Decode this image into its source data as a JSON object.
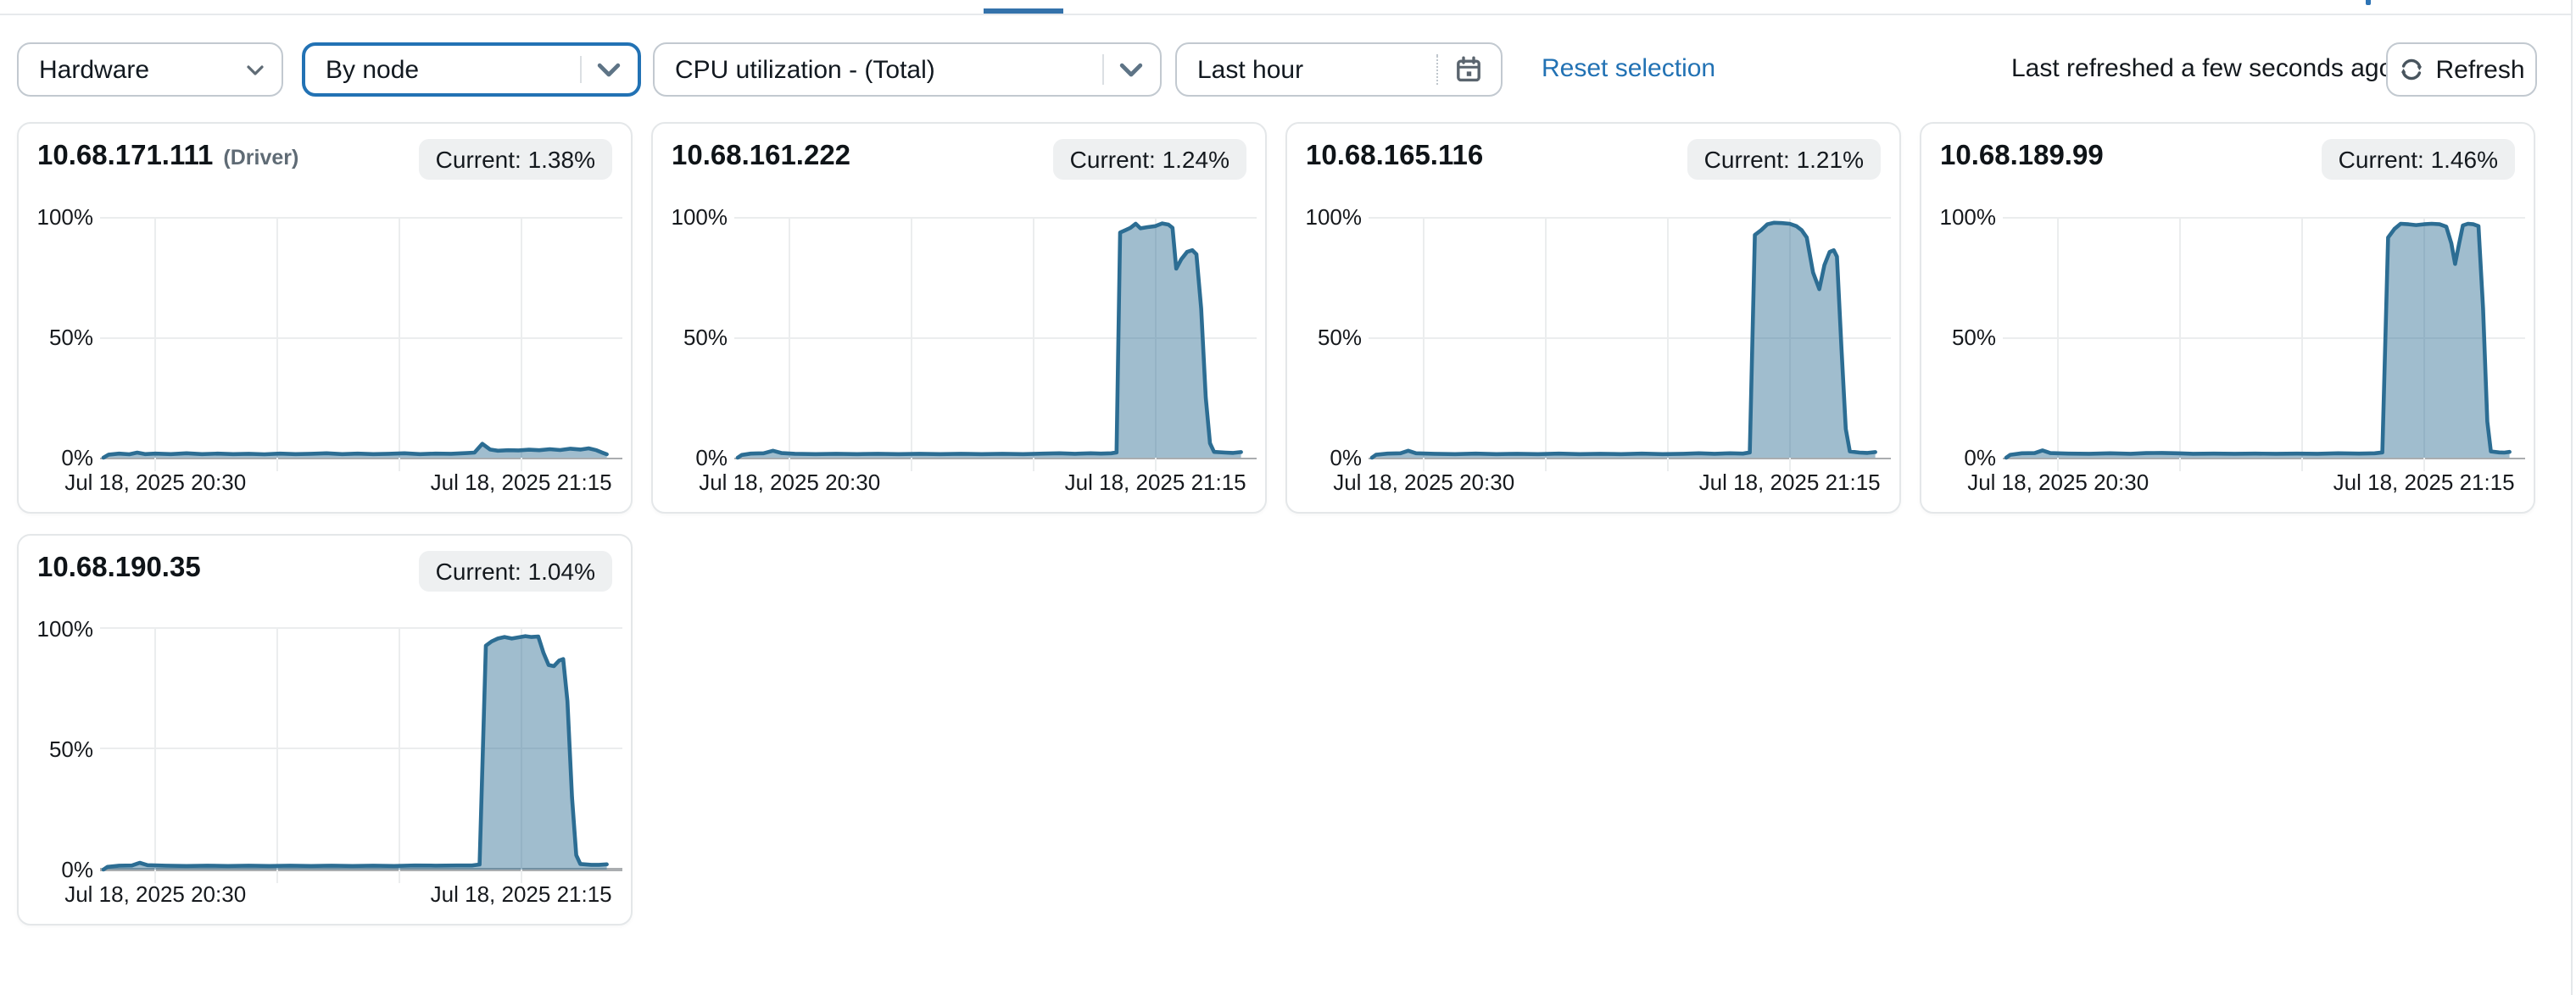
{
  "toolbar": {
    "hardware_select": {
      "value": "Hardware"
    },
    "group_by_select": {
      "value": "By node"
    },
    "metric_select": {
      "value": "CPU utilization - (Total)"
    },
    "time_range_select": {
      "value": "Last hour"
    },
    "reset_selection_label": "Reset selection",
    "last_refreshed": "Last refreshed a few seconds ago",
    "refresh_button_label": "Refresh"
  },
  "colors": {
    "accent_blue": "#2272b4",
    "tab_indicator": "#3472ab",
    "chart_line": "#2c6d93",
    "chart_fill": "rgba(44,109,147,0.45)",
    "gridline": "#ebedee",
    "zero_axis": "#aaadb0",
    "badge_bg": "#eef0f1"
  },
  "chart_data": {
    "type": "area",
    "metric": "CPU utilization - (Total)",
    "time_range": "Last hour",
    "ylim": [
      0,
      100
    ],
    "grid": "on",
    "legend": "none",
    "axes": {
      "y_ticks": [
        {
          "label": "100%",
          "value": 100
        },
        {
          "label": "50%",
          "value": 50
        },
        {
          "label": "0%",
          "value": 0
        }
      ],
      "x_ticks": [
        {
          "label": "Jul 18, 2025 20:30",
          "pos": 0.1
        },
        {
          "label": "Jul 18, 2025 21:15",
          "pos": 0.805
        }
      ],
      "x_gridlines": [
        0.1,
        0.335,
        0.57,
        0.805
      ]
    },
    "charts": [
      {
        "node": "10.68.171.111",
        "role": "(Driver)",
        "current": "Current: 1.38%",
        "current_value": 1.38,
        "points": [
          [
            0,
            0
          ],
          [
            0.01,
            1.3
          ],
          [
            0.03,
            1.7
          ],
          [
            0.05,
            1.4
          ],
          [
            0.065,
            2.1
          ],
          [
            0.08,
            1.5
          ],
          [
            0.1,
            1.7
          ],
          [
            0.13,
            1.5
          ],
          [
            0.16,
            1.8
          ],
          [
            0.19,
            1.5
          ],
          [
            0.22,
            1.7
          ],
          [
            0.25,
            1.5
          ],
          [
            0.28,
            1.6
          ],
          [
            0.31,
            1.4
          ],
          [
            0.34,
            1.7
          ],
          [
            0.37,
            1.5
          ],
          [
            0.4,
            1.6
          ],
          [
            0.43,
            1.8
          ],
          [
            0.46,
            1.5
          ],
          [
            0.49,
            1.7
          ],
          [
            0.52,
            1.5
          ],
          [
            0.55,
            1.6
          ],
          [
            0.58,
            1.8
          ],
          [
            0.61,
            1.5
          ],
          [
            0.64,
            1.7
          ],
          [
            0.67,
            1.6
          ],
          [
            0.7,
            1.9
          ],
          [
            0.715,
            2.1
          ],
          [
            0.73,
            5.8
          ],
          [
            0.745,
            3.4
          ],
          [
            0.76,
            2.9
          ],
          [
            0.78,
            3.1
          ],
          [
            0.8,
            3.0
          ],
          [
            0.82,
            3.3
          ],
          [
            0.84,
            3.1
          ],
          [
            0.86,
            3.5
          ],
          [
            0.88,
            3.2
          ],
          [
            0.9,
            3.7
          ],
          [
            0.92,
            3.4
          ],
          [
            0.935,
            3.9
          ],
          [
            0.95,
            3.1
          ],
          [
            0.96,
            2.2
          ],
          [
            0.97,
            1.4
          ]
        ]
      },
      {
        "node": "10.68.161.222",
        "role": "",
        "current": "Current: 1.24%",
        "current_value": 1.24,
        "points": [
          [
            0,
            0
          ],
          [
            0.008,
            1.1
          ],
          [
            0.025,
            1.7
          ],
          [
            0.05,
            1.8
          ],
          [
            0.068,
            2.9
          ],
          [
            0.085,
            1.9
          ],
          [
            0.11,
            1.6
          ],
          [
            0.15,
            1.5
          ],
          [
            0.19,
            1.6
          ],
          [
            0.23,
            1.5
          ],
          [
            0.27,
            1.6
          ],
          [
            0.31,
            1.5
          ],
          [
            0.35,
            1.6
          ],
          [
            0.39,
            1.5
          ],
          [
            0.43,
            1.6
          ],
          [
            0.47,
            1.5
          ],
          [
            0.51,
            1.6
          ],
          [
            0.55,
            1.5
          ],
          [
            0.59,
            1.7
          ],
          [
            0.62,
            1.8
          ],
          [
            0.65,
            1.6
          ],
          [
            0.68,
            1.8
          ],
          [
            0.7,
            1.7
          ],
          [
            0.72,
            1.8
          ],
          [
            0.73,
            2.2
          ],
          [
            0.737,
            93.5
          ],
          [
            0.747,
            94.5
          ],
          [
            0.757,
            95.5
          ],
          [
            0.767,
            97.2
          ],
          [
            0.776,
            95.3
          ],
          [
            0.79,
            95.8
          ],
          [
            0.805,
            96.2
          ],
          [
            0.818,
            97.3
          ],
          [
            0.83,
            96.8
          ],
          [
            0.838,
            95.5
          ],
          [
            0.845,
            78.5
          ],
          [
            0.855,
            82.5
          ],
          [
            0.866,
            85.5
          ],
          [
            0.876,
            86.2
          ],
          [
            0.884,
            84.5
          ],
          [
            0.893,
            62
          ],
          [
            0.902,
            25
          ],
          [
            0.91,
            6
          ],
          [
            0.918,
            2.4
          ],
          [
            0.94,
            2.1
          ],
          [
            0.955,
            2.0
          ],
          [
            0.97,
            2.3
          ]
        ]
      },
      {
        "node": "10.68.165.116",
        "role": "",
        "current": "Current: 1.21%",
        "current_value": 1.21,
        "points": [
          [
            0,
            0
          ],
          [
            0.008,
            1.2
          ],
          [
            0.03,
            1.7
          ],
          [
            0.055,
            1.8
          ],
          [
            0.07,
            2.9
          ],
          [
            0.085,
            1.8
          ],
          [
            0.12,
            1.6
          ],
          [
            0.16,
            1.5
          ],
          [
            0.2,
            1.7
          ],
          [
            0.24,
            1.5
          ],
          [
            0.28,
            1.6
          ],
          [
            0.32,
            1.5
          ],
          [
            0.36,
            1.7
          ],
          [
            0.4,
            1.5
          ],
          [
            0.44,
            1.6
          ],
          [
            0.48,
            1.5
          ],
          [
            0.52,
            1.7
          ],
          [
            0.56,
            1.5
          ],
          [
            0.6,
            1.6
          ],
          [
            0.63,
            1.8
          ],
          [
            0.66,
            1.6
          ],
          [
            0.69,
            1.8
          ],
          [
            0.715,
            1.7
          ],
          [
            0.728,
            2.2
          ],
          [
            0.738,
            92.5
          ],
          [
            0.75,
            94.5
          ],
          [
            0.762,
            97.0
          ],
          [
            0.775,
            97.6
          ],
          [
            0.79,
            97.5
          ],
          [
            0.805,
            97.2
          ],
          [
            0.818,
            96.2
          ],
          [
            0.828,
            94.5
          ],
          [
            0.838,
            91.5
          ],
          [
            0.85,
            77
          ],
          [
            0.862,
            70
          ],
          [
            0.872,
            80
          ],
          [
            0.882,
            85.5
          ],
          [
            0.89,
            86.2
          ],
          [
            0.896,
            83.5
          ],
          [
            0.905,
            45
          ],
          [
            0.913,
            12
          ],
          [
            0.921,
            2.6
          ],
          [
            0.94,
            2.1
          ],
          [
            0.955,
            2.0
          ],
          [
            0.97,
            2.3
          ]
        ]
      },
      {
        "node": "10.68.189.99",
        "role": "",
        "current": "Current: 1.46%",
        "current_value": 1.46,
        "points": [
          [
            0,
            0
          ],
          [
            0.008,
            1.2
          ],
          [
            0.03,
            1.8
          ],
          [
            0.055,
            1.9
          ],
          [
            0.07,
            3.0
          ],
          [
            0.085,
            1.9
          ],
          [
            0.12,
            1.7
          ],
          [
            0.16,
            1.6
          ],
          [
            0.2,
            1.8
          ],
          [
            0.24,
            1.6
          ],
          [
            0.27,
            1.9
          ],
          [
            0.3,
            2.0
          ],
          [
            0.33,
            1.8
          ],
          [
            0.36,
            1.6
          ],
          [
            0.4,
            1.7
          ],
          [
            0.44,
            1.6
          ],
          [
            0.48,
            1.7
          ],
          [
            0.52,
            1.6
          ],
          [
            0.56,
            1.7
          ],
          [
            0.6,
            1.6
          ],
          [
            0.64,
            1.8
          ],
          [
            0.68,
            1.7
          ],
          [
            0.71,
            1.8
          ],
          [
            0.725,
            2.2
          ],
          [
            0.736,
            91.5
          ],
          [
            0.748,
            95.0
          ],
          [
            0.76,
            97.2
          ],
          [
            0.775,
            97.0
          ],
          [
            0.79,
            96.6
          ],
          [
            0.805,
            97.0
          ],
          [
            0.82,
            97.2
          ],
          [
            0.835,
            97.0
          ],
          [
            0.848,
            96.0
          ],
          [
            0.858,
            89
          ],
          [
            0.865,
            80.5
          ],
          [
            0.873,
            89
          ],
          [
            0.88,
            96.5
          ],
          [
            0.89,
            97.2
          ],
          [
            0.9,
            97.0
          ],
          [
            0.91,
            96.2
          ],
          [
            0.919,
            62
          ],
          [
            0.927,
            15
          ],
          [
            0.934,
            2.6
          ],
          [
            0.95,
            2.2
          ],
          [
            0.96,
            2.1
          ],
          [
            0.97,
            2.4
          ]
        ]
      },
      {
        "node": "10.68.190.35",
        "role": "",
        "current": "Current: 1.04%",
        "current_value": 1.04,
        "points": [
          [
            0,
            0
          ],
          [
            0.008,
            1.1
          ],
          [
            0.03,
            1.6
          ],
          [
            0.055,
            1.7
          ],
          [
            0.07,
            2.8
          ],
          [
            0.085,
            1.8
          ],
          [
            0.12,
            1.6
          ],
          [
            0.16,
            1.5
          ],
          [
            0.2,
            1.6
          ],
          [
            0.24,
            1.5
          ],
          [
            0.28,
            1.6
          ],
          [
            0.32,
            1.5
          ],
          [
            0.36,
            1.6
          ],
          [
            0.4,
            1.5
          ],
          [
            0.44,
            1.6
          ],
          [
            0.48,
            1.5
          ],
          [
            0.52,
            1.6
          ],
          [
            0.56,
            1.5
          ],
          [
            0.6,
            1.7
          ],
          [
            0.64,
            1.6
          ],
          [
            0.68,
            1.7
          ],
          [
            0.71,
            1.7
          ],
          [
            0.725,
            2.1
          ],
          [
            0.737,
            93.0
          ],
          [
            0.748,
            94.8
          ],
          [
            0.76,
            96.0
          ],
          [
            0.773,
            96.6
          ],
          [
            0.787,
            96.0
          ],
          [
            0.8,
            96.5
          ],
          [
            0.813,
            97.0
          ],
          [
            0.825,
            96.6
          ],
          [
            0.838,
            96.8
          ],
          [
            0.848,
            90
          ],
          [
            0.858,
            85
          ],
          [
            0.868,
            84.5
          ],
          [
            0.878,
            86.8
          ],
          [
            0.886,
            87.5
          ],
          [
            0.894,
            70
          ],
          [
            0.903,
            30
          ],
          [
            0.911,
            6
          ],
          [
            0.919,
            2.3
          ],
          [
            0.94,
            2.0
          ],
          [
            0.955,
            2.0
          ],
          [
            0.97,
            2.2
          ]
        ]
      }
    ]
  }
}
